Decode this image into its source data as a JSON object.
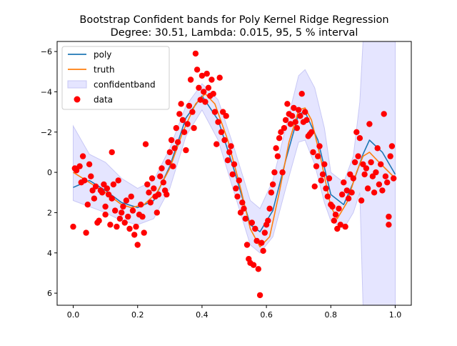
{
  "chart_data": {
    "type": "line",
    "title": "Bootstrap Confident bands for Poly Kernel Ridge Regression",
    "subtitle": "Degree: 30.51, Lambda: 0.015, 95, 5 % interval",
    "xlabel": "",
    "ylabel": "",
    "xlim": [
      -0.05,
      1.05
    ],
    "ylim": [
      6.6,
      -6.5
    ],
    "y_axis_inverted": true,
    "grid": false,
    "legend_position": "top-left",
    "x_ticks": [
      "0.0",
      "0.2",
      "0.4",
      "0.6",
      "0.8",
      "1.0"
    ],
    "y_ticks": [
      "−6",
      "−4",
      "−2",
      "0",
      "2",
      "4",
      "6"
    ],
    "x_tick_values": [
      0.0,
      0.2,
      0.4,
      0.6,
      0.8,
      1.0
    ],
    "y_tick_values": [
      -6,
      -4,
      -2,
      0,
      2,
      4,
      6
    ],
    "legend": [
      "poly",
      "truth",
      "confidentband",
      "data"
    ],
    "colors": {
      "poly": "#1f77b4",
      "truth": "#ff7f0e",
      "band_fill": "#e5e5ff",
      "band_edge": "#c8c8f5",
      "data": "#ff0000"
    },
    "series": [
      {
        "name": "poly",
        "x": [
          0.0,
          0.05,
          0.1,
          0.15,
          0.2,
          0.25,
          0.3,
          0.35,
          0.4,
          0.45,
          0.5,
          0.55,
          0.58,
          0.62,
          0.66,
          0.7,
          0.72,
          0.76,
          0.8,
          0.84,
          0.87,
          0.9,
          0.92,
          0.96,
          1.0
        ],
        "y": [
          0.75,
          0.4,
          0.9,
          1.5,
          1.75,
          1.4,
          -0.3,
          -2.7,
          -3.8,
          -2.6,
          -0.1,
          2.6,
          2.95,
          1.9,
          -0.6,
          -2.9,
          -3.0,
          -1.6,
          1.1,
          1.6,
          0.5,
          -0.9,
          -1.6,
          -1.0,
          0.1
        ]
      },
      {
        "name": "truth",
        "x": [
          0.0,
          0.05,
          0.1,
          0.15,
          0.18,
          0.22,
          0.26,
          0.3,
          0.34,
          0.38,
          0.41,
          0.44,
          0.48,
          0.52,
          0.55,
          0.58,
          0.61,
          0.64,
          0.67,
          0.7,
          0.72,
          0.74,
          0.77,
          0.8,
          0.82,
          0.85,
          0.88,
          0.9,
          0.92,
          0.95,
          1.0
        ],
        "y": [
          0.0,
          0.5,
          1.0,
          1.6,
          1.75,
          1.6,
          1.0,
          -0.2,
          -2.0,
          -3.4,
          -3.9,
          -3.4,
          -1.6,
          0.8,
          2.8,
          3.7,
          3.2,
          1.0,
          -1.5,
          -3.1,
          -3.2,
          -2.6,
          -0.6,
          1.7,
          2.3,
          1.5,
          0.0,
          -0.8,
          -1.0,
          -0.5,
          0.3
        ]
      }
    ],
    "confidence_band": {
      "name": "confidentband",
      "x": [
        0.0,
        0.05,
        0.1,
        0.15,
        0.2,
        0.25,
        0.3,
        0.35,
        0.4,
        0.45,
        0.5,
        0.55,
        0.58,
        0.62,
        0.66,
        0.7,
        0.72,
        0.75,
        0.78,
        0.8,
        0.84,
        0.87,
        0.89,
        0.9,
        0.92,
        0.95,
        1.0
      ],
      "lower": [
        -2.3,
        -0.9,
        -0.5,
        0.3,
        0.8,
        0.4,
        -1.2,
        -3.3,
        -4.4,
        -3.6,
        -1.2,
        1.4,
        1.8,
        0.4,
        -2.2,
        -4.8,
        -5.1,
        -4.2,
        -2.2,
        0.0,
        0.5,
        -0.8,
        -3.5,
        -6.5,
        -6.5,
        -6.5,
        -6.5
      ],
      "upper": [
        1.4,
        1.7,
        2.0,
        2.4,
        2.6,
        2.3,
        0.8,
        -1.8,
        -3.1,
        -1.6,
        1.0,
        3.6,
        4.0,
        3.2,
        0.8,
        -1.5,
        -1.6,
        -0.4,
        1.5,
        2.4,
        2.8,
        2.0,
        1.0,
        6.6,
        6.6,
        6.6,
        6.6
      ]
    },
    "scatter": {
      "name": "data",
      "points": [
        [
          0.0,
          2.7
        ],
        [
          0.005,
          -0.2
        ],
        [
          0.01,
          -0.1
        ],
        [
          0.02,
          -0.3
        ],
        [
          0.025,
          0.5
        ],
        [
          0.03,
          -0.8
        ],
        [
          0.035,
          0.4
        ],
        [
          0.04,
          3.0
        ],
        [
          0.045,
          1.6
        ],
        [
          0.05,
          -0.4
        ],
        [
          0.055,
          0.2
        ],
        [
          0.06,
          0.9
        ],
        [
          0.065,
          1.3
        ],
        [
          0.07,
          0.7
        ],
        [
          0.075,
          2.5
        ],
        [
          0.08,
          2.4
        ],
        [
          0.085,
          0.9
        ],
        [
          0.09,
          1.0
        ],
        [
          0.095,
          0.6
        ],
        [
          0.1,
          2.1
        ],
        [
          0.1,
          1.7
        ],
        [
          0.105,
          0.8
        ],
        [
          0.11,
          1.1
        ],
        [
          0.115,
          2.6
        ],
        [
          0.12,
          -1.0
        ],
        [
          0.12,
          1.3
        ],
        [
          0.125,
          0.6
        ],
        [
          0.13,
          1.9
        ],
        [
          0.135,
          2.7
        ],
        [
          0.14,
          0.4
        ],
        [
          0.145,
          2.3
        ],
        [
          0.15,
          2.0
        ],
        [
          0.155,
          1.7
        ],
        [
          0.16,
          2.5
        ],
        [
          0.165,
          1.4
        ],
        [
          0.17,
          2.2
        ],
        [
          0.175,
          2.8
        ],
        [
          0.18,
          1.2
        ],
        [
          0.185,
          1.9
        ],
        [
          0.19,
          3.1
        ],
        [
          0.195,
          2.7
        ],
        [
          0.2,
          3.6
        ],
        [
          0.205,
          2.1
        ],
        [
          0.21,
          1.6
        ],
        [
          0.215,
          2.2
        ],
        [
          0.22,
          3.0
        ],
        [
          0.225,
          -1.4
        ],
        [
          0.23,
          0.6
        ],
        [
          0.235,
          1.0
        ],
        [
          0.24,
          1.5
        ],
        [
          0.245,
          0.3
        ],
        [
          0.25,
          0.8
        ],
        [
          0.255,
          1.2
        ],
        [
          0.26,
          2.0
        ],
        [
          0.265,
          1.1
        ],
        [
          0.27,
          0.2
        ],
        [
          0.275,
          -0.2
        ],
        [
          0.28,
          0.5
        ],
        [
          0.285,
          0.9
        ],
        [
          0.29,
          1.1
        ],
        [
          0.295,
          -0.5
        ],
        [
          0.3,
          -1.0
        ],
        [
          0.305,
          -1.6
        ],
        [
          0.31,
          -0.3
        ],
        [
          0.315,
          -1.2
        ],
        [
          0.32,
          -2.2
        ],
        [
          0.325,
          -1.5
        ],
        [
          0.33,
          -2.9
        ],
        [
          0.335,
          -3.4
        ],
        [
          0.34,
          -2.6
        ],
        [
          0.345,
          -2.0
        ],
        [
          0.35,
          -1.1
        ],
        [
          0.355,
          -2.4
        ],
        [
          0.36,
          -3.3
        ],
        [
          0.365,
          -4.6
        ],
        [
          0.37,
          -3.0
        ],
        [
          0.375,
          -2.2
        ],
        [
          0.38,
          -5.9
        ],
        [
          0.385,
          -5.1
        ],
        [
          0.39,
          -4.2
        ],
        [
          0.395,
          -3.6
        ],
        [
          0.4,
          -4.8
        ],
        [
          0.405,
          -4.0
        ],
        [
          0.41,
          -3.5
        ],
        [
          0.415,
          -4.9
        ],
        [
          0.42,
          -4.2
        ],
        [
          0.425,
          -3.8
        ],
        [
          0.43,
          -4.6
        ],
        [
          0.435,
          -3.9
        ],
        [
          0.44,
          -3.0
        ],
        [
          0.445,
          -1.4
        ],
        [
          0.45,
          -2.5
        ],
        [
          0.455,
          -4.7
        ],
        [
          0.46,
          -2.0
        ],
        [
          0.465,
          -3.0
        ],
        [
          0.47,
          -1.6
        ],
        [
          0.475,
          -2.8
        ],
        [
          0.48,
          -0.6
        ],
        [
          0.485,
          -1.0
        ],
        [
          0.49,
          -1.3
        ],
        [
          0.495,
          0.1
        ],
        [
          0.5,
          -0.4
        ],
        [
          0.505,
          0.8
        ],
        [
          0.51,
          1.2
        ],
        [
          0.515,
          0.4
        ],
        [
          0.52,
          2.0
        ],
        [
          0.525,
          1.5
        ],
        [
          0.53,
          1.8
        ],
        [
          0.535,
          2.3
        ],
        [
          0.54,
          3.6
        ],
        [
          0.545,
          4.3
        ],
        [
          0.55,
          4.5
        ],
        [
          0.555,
          2.5
        ],
        [
          0.56,
          4.6
        ],
        [
          0.565,
          2.8
        ],
        [
          0.57,
          3.4
        ],
        [
          0.575,
          4.8
        ],
        [
          0.58,
          6.1
        ],
        [
          0.585,
          3.5
        ],
        [
          0.59,
          3.9
        ],
        [
          0.595,
          3.0
        ],
        [
          0.6,
          2.6
        ],
        [
          0.605,
          2.4
        ],
        [
          0.61,
          1.8
        ],
        [
          0.615,
          1.0
        ],
        [
          0.62,
          0.6
        ],
        [
          0.625,
          0.0
        ],
        [
          0.63,
          -1.2
        ],
        [
          0.635,
          -0.8
        ],
        [
          0.64,
          -1.7
        ],
        [
          0.645,
          -2.0
        ],
        [
          0.65,
          0.0
        ],
        [
          0.655,
          -2.2
        ],
        [
          0.66,
          -2.6
        ],
        [
          0.665,
          -3.4
        ],
        [
          0.67,
          -2.9
        ],
        [
          0.675,
          -2.4
        ],
        [
          0.68,
          -2.8
        ],
        [
          0.685,
          -3.2
        ],
        [
          0.69,
          -2.5
        ],
        [
          0.695,
          -2.2
        ],
        [
          0.7,
          -3.1
        ],
        [
          0.705,
          -2.8
        ],
        [
          0.71,
          -3.9
        ],
        [
          0.715,
          -2.5
        ],
        [
          0.72,
          -3.0
        ],
        [
          0.725,
          -2.6
        ],
        [
          0.73,
          -1.8
        ],
        [
          0.735,
          -1.9
        ],
        [
          0.74,
          -2.0
        ],
        [
          0.745,
          -1.0
        ],
        [
          0.75,
          0.7
        ],
        [
          0.755,
          -0.3
        ],
        [
          0.76,
          -0.8
        ],
        [
          0.765,
          -1.3
        ],
        [
          0.77,
          0.4
        ],
        [
          0.775,
          0.1
        ],
        [
          0.78,
          -0.4
        ],
        [
          0.785,
          0.8
        ],
        [
          0.79,
          1.2
        ],
        [
          0.795,
          0.3
        ],
        [
          0.8,
          1.6
        ],
        [
          0.805,
          1.7
        ],
        [
          0.81,
          2.4
        ],
        [
          0.815,
          2.1
        ],
        [
          0.82,
          2.8
        ],
        [
          0.825,
          1.8
        ],
        [
          0.83,
          2.6
        ],
        [
          0.835,
          1.1
        ],
        [
          0.84,
          0.5
        ],
        [
          0.845,
          2.7
        ],
        [
          0.85,
          0.9
        ],
        [
          0.855,
          1.3
        ],
        [
          0.86,
          0.1
        ],
        [
          0.865,
          1.0
        ],
        [
          0.87,
          0.3
        ],
        [
          0.875,
          -0.5
        ],
        [
          0.88,
          -2.0
        ],
        [
          0.885,
          -0.8
        ],
        [
          0.89,
          -1.7
        ],
        [
          0.895,
          1.4
        ],
        [
          0.9,
          -0.4
        ],
        [
          0.905,
          0.1
        ],
        [
          0.91,
          -0.2
        ],
        [
          0.915,
          0.8
        ],
        [
          0.92,
          -2.4
        ],
        [
          0.925,
          -0.5
        ],
        [
          0.93,
          0.2
        ],
        [
          0.935,
          1.0
        ],
        [
          0.94,
          0.0
        ],
        [
          0.945,
          -1.2
        ],
        [
          0.95,
          0.6
        ],
        [
          0.955,
          -0.4
        ],
        [
          0.96,
          0.9
        ],
        [
          0.965,
          -2.9
        ],
        [
          0.97,
          0.2
        ],
        [
          0.975,
          0.5
        ],
        [
          0.98,
          2.2
        ],
        [
          0.98,
          2.6
        ],
        [
          0.985,
          -0.8
        ],
        [
          0.99,
          -1.3
        ],
        [
          0.995,
          0.3
        ]
      ]
    }
  }
}
